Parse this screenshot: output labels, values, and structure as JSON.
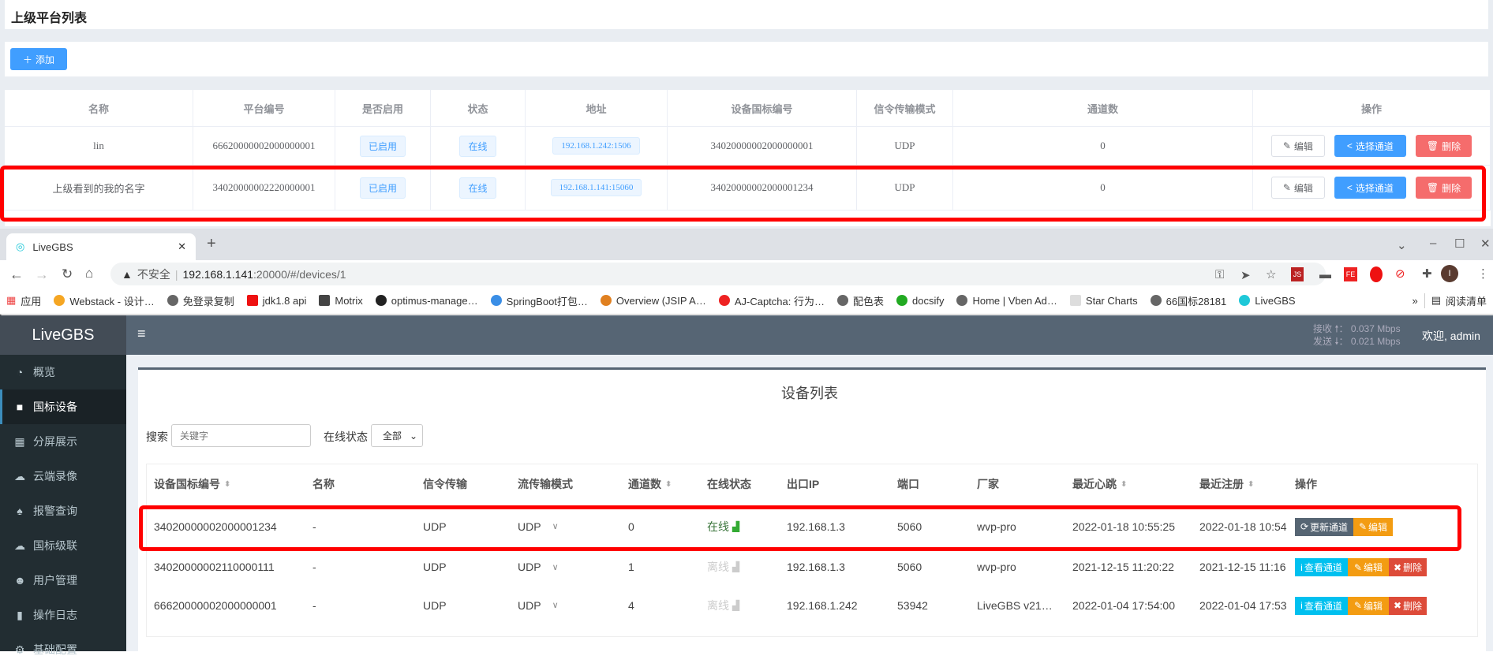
{
  "platform_page": {
    "title": "上级平台列表",
    "add_button": "添加",
    "headers": [
      "名称",
      "平台编号",
      "是否启用",
      "状态",
      "地址",
      "设备国标编号",
      "信令传输模式",
      "通道数",
      "操作"
    ],
    "rows": [
      {
        "name": "lin",
        "platform_id": "66620000002000000001",
        "enabled": "已启用",
        "status": "在线",
        "address": "192.168.1.242:1506",
        "device_gb_id": "34020000002000000001",
        "transport": "UDP",
        "channels": "0"
      },
      {
        "name": "上级看到的我的名字",
        "platform_id": "34020000002220000001",
        "enabled": "已启用",
        "status": "在线",
        "address": "192.168.1.141:15060",
        "device_gb_id": "34020000002000001234",
        "transport": "UDP",
        "channels": "0"
      }
    ],
    "actions": {
      "edit": "编辑",
      "select_channels": "选择通道",
      "delete": "删除"
    }
  },
  "browser": {
    "tab_title": "LiveGBS",
    "security_label": "不安全",
    "url_host": "192.168.1.141",
    "url_rest": ":20000/#/devices/1",
    "bookmarks": [
      "应用",
      "Webstack - 设计…",
      "免登录复制",
      "jdk1.8 api",
      "Motrix",
      "optimus-manage…",
      "SpringBoot打包…",
      "Overview (JSIP A…",
      "AJ-Captcha: 行为…",
      "配色表",
      "docsify",
      "Home | Vben Ad…",
      "Star Charts",
      "66国标28181",
      "LiveGBS"
    ],
    "more": "»",
    "reading_list": "阅读清单",
    "profile_initial": "I"
  },
  "app": {
    "logo": "LiveGBS",
    "rx_label": "接收",
    "rx_value": "0.037 Mbps",
    "tx_label": "发送",
    "tx_value": "0.021 Mbps",
    "welcome": "欢迎, admin",
    "sidebar": [
      "概览",
      "国标设备",
      "分屏展示",
      "云端录像",
      "报警查询",
      "国标级联",
      "用户管理",
      "操作日志",
      "基础配置"
    ],
    "page_title": "设备列表",
    "search_label": "搜索",
    "search_placeholder": "关键字",
    "status_label": "在线状态",
    "status_value": "全部",
    "headers": [
      "设备国标编号",
      "名称",
      "信令传输",
      "流传输模式",
      "通道数",
      "在线状态",
      "出口IP",
      "端口",
      "厂家",
      "最近心跳",
      "最近注册",
      "操作"
    ],
    "rows": [
      {
        "id": "34020000002000001234",
        "name": "-",
        "signal": "UDP",
        "stream": "UDP",
        "channels": "0",
        "online": "在线",
        "ip": "192.168.1.3",
        "port": "5060",
        "vendor": "wvp-pro",
        "heartbeat": "2022-01-18 10:55:25",
        "register": "2022-01-18 10:54"
      },
      {
        "id": "34020000002110000111",
        "name": "-",
        "signal": "UDP",
        "stream": "UDP",
        "channels": "1",
        "online": "离线",
        "ip": "192.168.1.3",
        "port": "5060",
        "vendor": "wvp-pro",
        "heartbeat": "2021-12-15 11:20:22",
        "register": "2021-12-15 11:16"
      },
      {
        "id": "66620000002000000001",
        "name": "-",
        "signal": "UDP",
        "stream": "UDP",
        "channels": "4",
        "online": "离线",
        "ip": "192.168.1.242",
        "port": "53942",
        "vendor": "LiveGBS v21…",
        "heartbeat": "2022-01-04 17:54:00",
        "register": "2022-01-04 17:53"
      }
    ],
    "ops": {
      "update": "更新通道",
      "view": "查看通道",
      "edit": "编辑",
      "delete": "删除"
    }
  },
  "colors": {
    "highlight": "#ff0000",
    "primary": "#409eff",
    "danger": "#f56c6c",
    "online": "#3c763d"
  }
}
